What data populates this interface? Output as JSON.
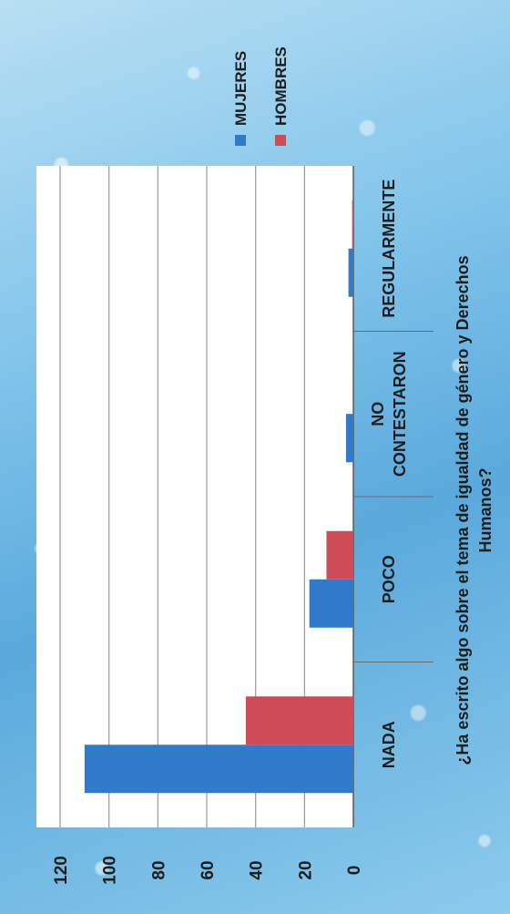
{
  "chart_data": {
    "type": "bar",
    "orientation": "horizontal",
    "title_lines": [
      "¿Ha escrito algo sobre el tema de igualdad de género y Derechos",
      "Humanos?"
    ],
    "categories": [
      "NADA",
      "POCO",
      "NO\nCONTESTARON",
      "REGULARMENTE"
    ],
    "category_lines": [
      [
        "NADA"
      ],
      [
        "POCO"
      ],
      [
        "NO",
        "CONTESTARON"
      ],
      [
        "REGULARMENTE"
      ]
    ],
    "series": [
      {
        "name": "MUJERES",
        "color": "#2f7bc9",
        "values": [
          110,
          18,
          3,
          2
        ]
      },
      {
        "name": "HOMBRES",
        "color": "#cf4b57",
        "values": [
          44,
          11,
          0,
          0.5
        ]
      }
    ],
    "xlim": [
      0,
      120
    ],
    "ticks": [
      "0",
      "20",
      "40",
      "60",
      "80",
      "100",
      "120"
    ],
    "tick_values": [
      0,
      20,
      40,
      60,
      80,
      100,
      120
    ],
    "grid": true,
    "legend_position": "top"
  }
}
